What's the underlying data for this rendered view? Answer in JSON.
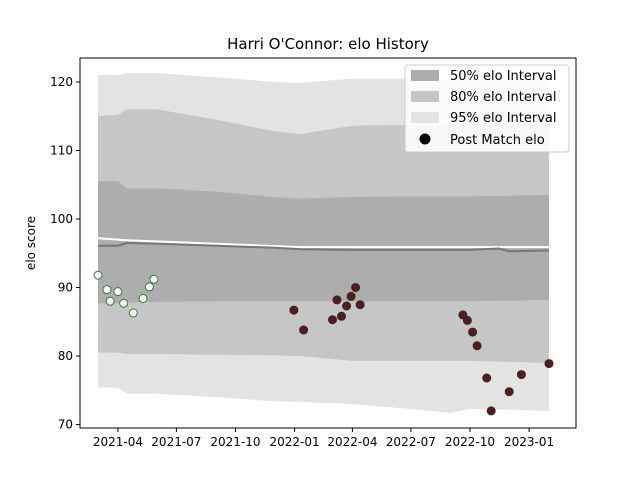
{
  "chart_data": {
    "type": "scatter",
    "title": "Harri O'Connor: elo History",
    "xlabel": "",
    "ylabel": "elo score",
    "xlim": [
      "2021-02-01",
      "2023-03-15"
    ],
    "ylim": [
      69.5,
      123.5
    ],
    "x_ticks": [
      "2021-04",
      "2021-07",
      "2021-10",
      "2022-01",
      "2022-04",
      "2022-07",
      "2022-10",
      "2023-01"
    ],
    "y_ticks": [
      70,
      80,
      90,
      100,
      110,
      120
    ],
    "grid": false,
    "legend_position": "top-right",
    "legend": [
      {
        "label": "50% elo Interval",
        "kind": "patch",
        "color": "#adadad"
      },
      {
        "label": "80% elo Interval",
        "kind": "patch",
        "color": "#c6c6c6"
      },
      {
        "label": "95% elo Interval",
        "kind": "patch",
        "color": "#e3e3e3"
      },
      {
        "label": "Post Match elo",
        "kind": "marker",
        "color": "#000000"
      }
    ],
    "bands": [
      {
        "name": "95% elo Interval",
        "color": "#e3e3e3",
        "x": [
          "2021-03-01",
          "2021-04-01",
          "2021-04-15",
          "2021-06-01",
          "2021-09-01",
          "2021-12-01",
          "2022-01-10",
          "2022-04-01",
          "2022-06-01",
          "2022-09-01",
          "2022-10-01",
          "2023-02-01"
        ],
        "upper": [
          121,
          121,
          121.3,
          121.3,
          120.7,
          120,
          119.9,
          120.5,
          120.5,
          120.5,
          120.5,
          120.5
        ],
        "lower": [
          75.4,
          75.4,
          74.5,
          74.5,
          74,
          73.4,
          73.3,
          73,
          72.5,
          71.7,
          72.3,
          72
        ]
      },
      {
        "name": "80% elo Interval",
        "color": "#c6c6c6",
        "x": [
          "2021-03-01",
          "2021-04-01",
          "2021-04-15",
          "2021-06-01",
          "2021-09-01",
          "2021-12-01",
          "2022-01-10",
          "2022-04-01",
          "2022-06-01",
          "2022-09-01",
          "2022-10-01",
          "2023-02-01"
        ],
        "upper": [
          115,
          115.2,
          116,
          116,
          114.5,
          112.8,
          112.4,
          113.6,
          113.7,
          113.7,
          113.7,
          113.7
        ],
        "lower": [
          80.5,
          80.5,
          80.3,
          80.3,
          80.2,
          80.1,
          80,
          79.3,
          79.3,
          79.3,
          79.3,
          79
        ]
      },
      {
        "name": "50% elo Interval",
        "color": "#adadad",
        "x": [
          "2021-03-01",
          "2021-04-01",
          "2021-04-15",
          "2021-06-01",
          "2021-09-01",
          "2021-12-01",
          "2022-01-10",
          "2022-04-01",
          "2022-06-01",
          "2022-09-01",
          "2022-10-01",
          "2023-02-01"
        ],
        "upper": [
          105.5,
          105.5,
          104.5,
          104.5,
          104,
          103.2,
          103,
          103.2,
          103.3,
          103.3,
          103.3,
          103.5
        ],
        "lower": [
          87.7,
          87.7,
          87.8,
          87.9,
          88,
          88,
          88,
          88,
          88,
          88,
          88,
          88.2
        ]
      }
    ],
    "mean_line": {
      "color": "#777777",
      "x": [
        "2021-03-01",
        "2021-04-01",
        "2021-04-15",
        "2021-06-01",
        "2021-09-01",
        "2021-12-01",
        "2022-01-10",
        "2022-04-01",
        "2022-07-01",
        "2022-10-01",
        "2022-11-15",
        "2022-12-01",
        "2023-02-01"
      ],
      "y": [
        96.1,
        96.1,
        96.5,
        96.4,
        96.1,
        95.8,
        95.6,
        95.5,
        95.5,
        95.5,
        95.7,
        95.3,
        95.4
      ]
    },
    "upper_line": {
      "color": "#ffffff",
      "x": [
        "2021-03-01",
        "2021-04-15",
        "2021-09-01",
        "2022-01-10",
        "2022-07-01",
        "2023-02-01"
      ],
      "y": [
        97.2,
        96.9,
        96.4,
        95.9,
        95.9,
        95.9
      ]
    },
    "series": [
      {
        "fill": "#ffffff",
        "edge": "#2e7d32",
        "points": [
          {
            "x": "2021-03-01",
            "y": 91.8
          },
          {
            "x": "2021-03-15",
            "y": 89.7
          },
          {
            "x": "2021-03-20",
            "y": 88.0
          },
          {
            "x": "2021-04-01",
            "y": 89.4
          },
          {
            "x": "2021-04-10",
            "y": 87.7
          },
          {
            "x": "2021-04-25",
            "y": 86.3
          },
          {
            "x": "2021-05-10",
            "y": 88.4
          },
          {
            "x": "2021-05-20",
            "y": 90.1
          },
          {
            "x": "2021-05-27",
            "y": 91.2
          }
        ]
      },
      {
        "fill": "#5a1a1a",
        "edge": "#2a2a2a",
        "points": [
          {
            "x": "2021-12-31",
            "y": 86.7
          },
          {
            "x": "2022-01-15",
            "y": 83.8
          },
          {
            "x": "2022-03-01",
            "y": 85.3
          },
          {
            "x": "2022-03-08",
            "y": 88.2
          },
          {
            "x": "2022-03-15",
            "y": 85.8
          },
          {
            "x": "2022-03-23",
            "y": 87.3
          },
          {
            "x": "2022-03-30",
            "y": 88.7
          },
          {
            "x": "2022-04-06",
            "y": 90.0
          },
          {
            "x": "2022-04-13",
            "y": 87.5
          },
          {
            "x": "2022-09-20",
            "y": 86.0
          },
          {
            "x": "2022-09-27",
            "y": 85.2
          },
          {
            "x": "2022-10-05",
            "y": 83.5
          },
          {
            "x": "2022-10-12",
            "y": 81.5
          },
          {
            "x": "2022-10-27",
            "y": 76.8
          },
          {
            "x": "2022-11-03",
            "y": 72.0
          },
          {
            "x": "2022-12-01",
            "y": 74.8
          },
          {
            "x": "2022-12-20",
            "y": 77.3
          },
          {
            "x": "2023-02-01",
            "y": 78.9
          }
        ]
      }
    ]
  }
}
